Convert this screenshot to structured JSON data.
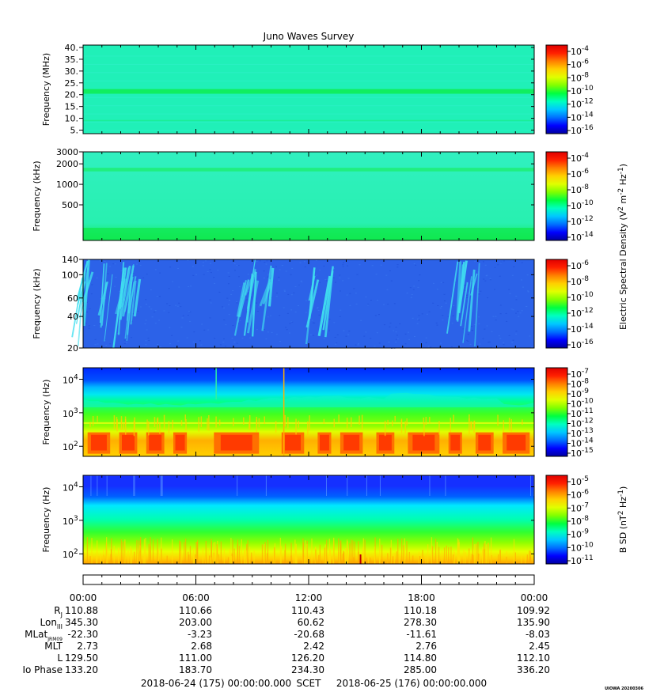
{
  "chart_data": {
    "type": "heatmap",
    "title": "Juno Waves Survey",
    "colors": {
      "colormap": [
        "#0000a0",
        "#0000ff",
        "#0070ff",
        "#00c8ff",
        "#00ffc0",
        "#00ff40",
        "#80ff00",
        "#e0ff00",
        "#ffd000",
        "#ff8000",
        "#ff2000",
        "#e00000"
      ],
      "panel1_fill": "#20f0b8",
      "panel1_band": "#10ee60",
      "panel2_fill": "#28f0b0",
      "panel2_band": "#20ee80",
      "panel2_bottom": "#10e850",
      "panel3_fill": "#2c62e8",
      "panel3_streak": "#40e0f0",
      "panel5_top": "#1530ff",
      "panel5_mid": "#00e8ff"
    },
    "panels": [
      {
        "ylabel": "Frequency (MHz)",
        "yticks": [
          "40.",
          "35.",
          "30.",
          "25.",
          "20.",
          "15.",
          "10.",
          "5."
        ],
        "ylim": [
          3.5,
          41
        ],
        "yscale": "linear",
        "colorbar_ticks": [
          {
            "b": "10",
            "e": "-4"
          },
          {
            "b": "10",
            "e": "-6"
          },
          {
            "b": "10",
            "e": "-8"
          },
          {
            "b": "10",
            "e": "-10"
          },
          {
            "b": "10",
            "e": "-12"
          },
          {
            "b": "10",
            "e": "-14"
          },
          {
            "b": "10",
            "e": "-16"
          }
        ]
      },
      {
        "ylabel": "Frequency (kHz)",
        "yticks": [
          "3000",
          "2000",
          "1000",
          "500"
        ],
        "ylim": [
          150,
          3000
        ],
        "yscale": "log",
        "colorbar_ticks": [
          {
            "b": "10",
            "e": "-4"
          },
          {
            "b": "10",
            "e": "-6"
          },
          {
            "b": "10",
            "e": "-8"
          },
          {
            "b": "10",
            "e": "-10"
          },
          {
            "b": "10",
            "e": "-12"
          },
          {
            "b": "10",
            "e": "-14"
          }
        ],
        "colorbar_label": {
          "a": "Electric Spectral Density (V",
          "b": "2",
          "c": " m",
          "d": "-2",
          "e": " Hz",
          "f": "-1",
          "g": ")"
        }
      },
      {
        "ylabel": "Frequency (kHz)",
        "yticks": [
          "140",
          "100",
          "60",
          "40",
          "20"
        ],
        "ylim": [
          20,
          140
        ],
        "yscale": "log",
        "colorbar_ticks": [
          {
            "b": "10",
            "e": "-6"
          },
          {
            "b": "10",
            "e": "-8"
          },
          {
            "b": "10",
            "e": "-10"
          },
          {
            "b": "10",
            "e": "-12"
          },
          {
            "b": "10",
            "e": "-14"
          },
          {
            "b": "10",
            "e": "-16"
          }
        ]
      },
      {
        "ylabel": "Frequency (Hz)",
        "yticks": [
          {
            "b": "10",
            "e": "4"
          },
          {
            "b": "10",
            "e": "3"
          },
          {
            "b": "10",
            "e": "2"
          }
        ],
        "ylim": [
          50,
          22000
        ],
        "yscale": "log",
        "colorbar_ticks": [
          {
            "b": "10",
            "e": "-7"
          },
          {
            "b": "10",
            "e": "-8"
          },
          {
            "b": "10",
            "e": "-9"
          },
          {
            "b": "10",
            "e": "-10"
          },
          {
            "b": "10",
            "e": "-11"
          },
          {
            "b": "10",
            "e": "-12"
          },
          {
            "b": "10",
            "e": "-13"
          },
          {
            "b": "10",
            "e": "-14"
          },
          {
            "b": "10",
            "e": "-15"
          }
        ]
      },
      {
        "ylabel": "Frequency (Hz)",
        "yticks": [
          {
            "b": "10",
            "e": "4"
          },
          {
            "b": "10",
            "e": "3"
          },
          {
            "b": "10",
            "e": "2"
          }
        ],
        "ylim": [
          50,
          22000
        ],
        "yscale": "log",
        "colorbar_ticks": [
          {
            "b": "10",
            "e": "-5"
          },
          {
            "b": "10",
            "e": "-6"
          },
          {
            "b": "10",
            "e": "-7"
          },
          {
            "b": "10",
            "e": "-8"
          },
          {
            "b": "10",
            "e": "-9"
          },
          {
            "b": "10",
            "e": "-10"
          },
          {
            "b": "10",
            "e": "-11"
          }
        ],
        "colorbar_label": {
          "a": "B SD (nT",
          "b": "2",
          "c": " Hz",
          "d": "-1",
          "e": ")"
        }
      }
    ],
    "x_ticks": [
      "00:00",
      "06:00",
      "12:00",
      "18:00",
      "00:00"
    ],
    "ephemeris": [
      {
        "label": "R",
        "sub": "J",
        "values": [
          "110.88",
          "110.66",
          "110.43",
          "110.18",
          "109.92"
        ]
      },
      {
        "label": "Lon",
        "sub": "III",
        "values": [
          "345.30",
          "203.00",
          "60.62",
          "278.30",
          "135.90"
        ]
      },
      {
        "label": "MLat",
        "sub": "JRM09",
        "values": [
          "-22.30",
          "-3.23",
          "-20.68",
          "-11.61",
          "-8.03"
        ]
      },
      {
        "label": "MLT",
        "sub": "",
        "values": [
          "2.73",
          "2.68",
          "2.42",
          "2.76",
          "2.45"
        ]
      },
      {
        "label": "L",
        "sub": "",
        "values": [
          "129.50",
          "111.00",
          "126.20",
          "114.80",
          "112.10"
        ]
      },
      {
        "label": "Io Phase",
        "sub": "",
        "values": [
          "133.20",
          "183.70",
          "234.30",
          "285.00",
          "336.20"
        ]
      }
    ],
    "footer": {
      "start": "2018-06-24 (175) 00:00:00.000",
      "axis": "SCET",
      "end": "2018-06-25 (176) 00:00:00.000"
    },
    "stamp": "UIOWA 20200306"
  }
}
